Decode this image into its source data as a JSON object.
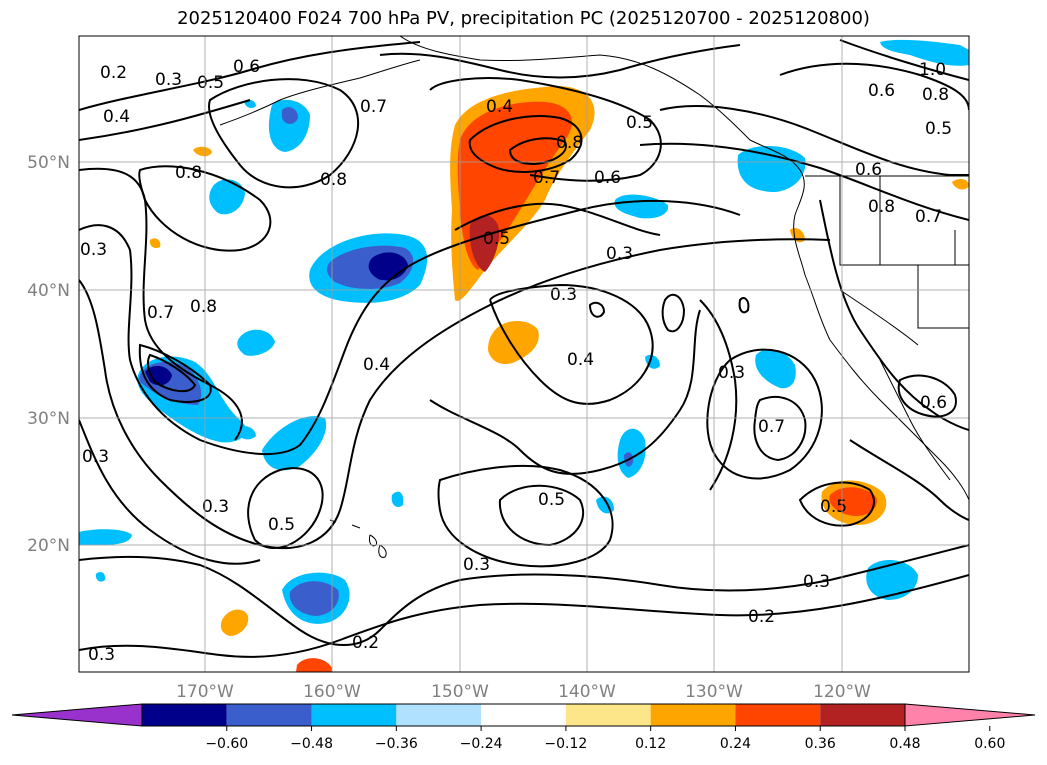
{
  "title": "2025120400 F024 700 hPa PV, precipitation PC (2025120700 - 2025120800)",
  "lat_ticks": [
    "50°N",
    "40°N",
    "30°N",
    "20°N"
  ],
  "lon_ticks": [
    "170°W",
    "160°W",
    "150°W",
    "140°W",
    "130°W",
    "120°W"
  ],
  "colorbar": {
    "colors": [
      "#9932cc",
      "#00008b",
      "#3a5fcd",
      "#00bfff",
      "#b0e2ff",
      "#ffffff",
      "#fde68a",
      "#ffa500",
      "#ff4500",
      "#b22222",
      "#ff82ab"
    ],
    "labels": [
      "−0.60",
      "−0.48",
      "−0.36",
      "−0.24",
      "−0.12",
      "0.12",
      "0.24",
      "0.36",
      "0.48",
      "0.60"
    ]
  },
  "contour_labels": [
    "0.2",
    "0.3",
    "0.5",
    "0.6",
    "0.4",
    "0.7",
    "0.8",
    "0.8",
    "0.3",
    "0.7",
    "0.8",
    "0.4",
    "0.8",
    "0.5",
    "0.7",
    "0.6",
    "0.4",
    "0.5",
    "0.3",
    "0.3",
    "0.4",
    "0.3",
    "0.7",
    "0.5",
    "0.3",
    "0.3",
    "0.5",
    "0.2",
    "0.3",
    "0.2",
    "0.3",
    "0.5",
    "0.6",
    "0.8",
    "0.7",
    "1.0",
    "0.6",
    "0.8",
    "0.5",
    "0.6",
    "0.3"
  ]
}
